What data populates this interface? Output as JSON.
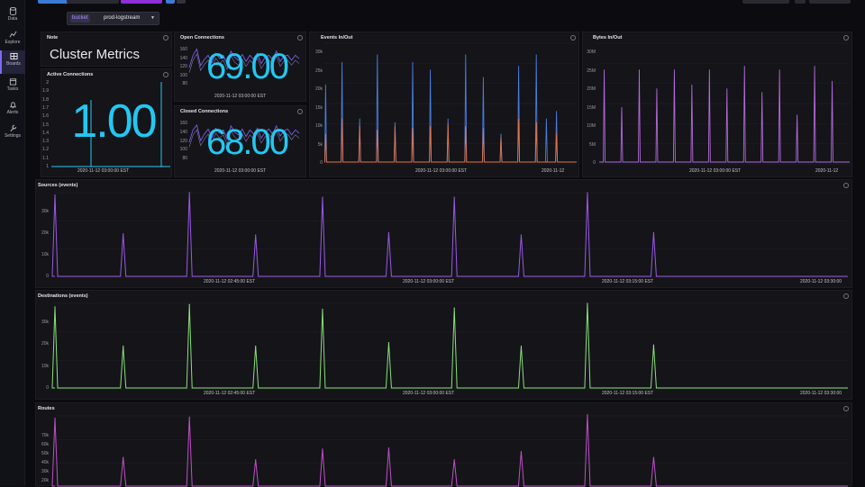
{
  "sidebar": {
    "items": [
      {
        "label": "Data",
        "icon": "database-icon"
      },
      {
        "label": "Explore",
        "icon": "graph-icon"
      },
      {
        "label": "Boards",
        "icon": "dashboard-icon"
      },
      {
        "label": "Tasks",
        "icon": "calendar-icon"
      },
      {
        "label": "Alerts",
        "icon": "bell-icon"
      },
      {
        "label": "Settings",
        "icon": "wrench-icon"
      }
    ]
  },
  "variables": {
    "bucket_label": "bucket",
    "bucket_value": "prod-logstream"
  },
  "colors": {
    "accent": "#22c8f2",
    "purple": "#9b59e6",
    "green": "#8be07a",
    "magenta": "#c04fc8",
    "orange": "#e0734c",
    "blue": "#4d7de0"
  },
  "note": {
    "title": "Note",
    "text": "Cluster Metrics"
  },
  "active_connections": {
    "title": "Active Connections",
    "value": "1.00",
    "yticks": [
      "2",
      "1.9",
      "1.8",
      "1.7",
      "1.6",
      "1.5",
      "1.4",
      "1.3",
      "1.2",
      "1.1",
      "1"
    ],
    "xlabel": "2020-11-12 03:00:00 EST"
  },
  "open_connections": {
    "title": "Open Connections",
    "value": "69.00",
    "yticks": [
      "160",
      "140",
      "120",
      "100",
      "80"
    ],
    "xlabel": "2020-11-12 03:00:00 EST"
  },
  "closed_connections": {
    "title": "Closed Connections",
    "value": "68.00",
    "yticks": [
      "160",
      "140",
      "120",
      "100",
      "80"
    ],
    "xlabel": "2020-11-12 03:00:00 EST"
  },
  "events_inout": {
    "title": "Events In/Out",
    "yticks": [
      "30k",
      "25k",
      "20k",
      "15k",
      "10k",
      "5k",
      "0"
    ],
    "xlabels": [
      "2020-11-12 03:00:00 EST",
      "2020-11-12"
    ]
  },
  "bytes_inout": {
    "title": "Bytes In/Out",
    "yticks": [
      "30M",
      "25M",
      "20M",
      "15M",
      "10M",
      "5M",
      "0"
    ],
    "xlabels": [
      "2020-11-12 03:00:00 EST",
      "2020-11-12"
    ]
  },
  "sources": {
    "title": "Sources (events)",
    "yticks": [
      "30k",
      "20k",
      "10k",
      "0"
    ],
    "xlabels": [
      "2020-11-12 02:45:00 EST",
      "2020-11-12 03:00:00 EST",
      "2020-11-12 03:15:00 EST",
      "2020-11-12 03:30:00"
    ]
  },
  "destinations": {
    "title": "Destinations (events)",
    "yticks": [
      "30k",
      "20k",
      "10k",
      "0"
    ],
    "xlabels": [
      "2020-11-12 02:45:00 EST",
      "2020-11-12 03:00:00 EST",
      "2020-11-12 03:15:00 EST",
      "2020-11-12 03:30:00"
    ]
  },
  "routes": {
    "title": "Routes",
    "yticks": [
      "70k",
      "60k",
      "50k",
      "40k",
      "30k",
      "20k"
    ]
  },
  "chart_data": [
    {
      "type": "line",
      "name": "sources",
      "ylim": [
        0,
        37000
      ],
      "spikes": [
        {
          "t": 0,
          "v": 36000
        },
        {
          "t": 0.103,
          "v": 19000
        },
        {
          "t": 0.203,
          "v": 37000
        },
        {
          "t": 0.303,
          "v": 18500
        },
        {
          "t": 0.404,
          "v": 35000
        },
        {
          "t": 0.504,
          "v": 19500
        },
        {
          "t": 0.603,
          "v": 35000
        },
        {
          "t": 0.704,
          "v": 18500
        },
        {
          "t": 0.804,
          "v": 37000
        },
        {
          "t": 0.904,
          "v": 19500
        }
      ]
    },
    {
      "type": "line",
      "name": "destinations",
      "ylim": [
        0,
        37000
      ],
      "spikes": [
        {
          "t": 0,
          "v": 35500
        },
        {
          "t": 0.103,
          "v": 18500
        },
        {
          "t": 0.203,
          "v": 36500
        },
        {
          "t": 0.303,
          "v": 18500
        },
        {
          "t": 0.404,
          "v": 34500
        },
        {
          "t": 0.504,
          "v": 20000
        },
        {
          "t": 0.603,
          "v": 35000
        },
        {
          "t": 0.704,
          "v": 18500
        },
        {
          "t": 0.804,
          "v": 37000
        },
        {
          "t": 0.904,
          "v": 19000
        }
      ]
    },
    {
      "type": "line",
      "name": "routes",
      "ylim": [
        15000,
        75000
      ],
      "spikes": [
        {
          "t": 0,
          "v": 73000
        },
        {
          "t": 0.103,
          "v": 40000
        },
        {
          "t": 0.203,
          "v": 74000
        },
        {
          "t": 0.303,
          "v": 38000
        },
        {
          "t": 0.404,
          "v": 47000
        },
        {
          "t": 0.504,
          "v": 48000
        },
        {
          "t": 0.603,
          "v": 38000
        },
        {
          "t": 0.704,
          "v": 45000
        },
        {
          "t": 0.804,
          "v": 76000
        },
        {
          "t": 0.904,
          "v": 40000
        }
      ]
    },
    {
      "type": "line",
      "name": "events_inout",
      "ylim": [
        0,
        32000
      ],
      "series": [
        {
          "name": "in",
          "spikes": [
            [
              0.005,
              21000
            ],
            [
              0.07,
              27000
            ],
            [
              0.14,
              12000
            ],
            [
              0.21,
              29000
            ],
            [
              0.28,
              11000
            ],
            [
              0.35,
              27000
            ],
            [
              0.42,
              25000
            ],
            [
              0.49,
              12000
            ],
            [
              0.56,
              29000
            ],
            [
              0.63,
              23000
            ],
            [
              0.7,
              8000
            ],
            [
              0.77,
              26000
            ],
            [
              0.84,
              29000
            ],
            [
              0.88,
              12000
            ],
            [
              0.92,
              14000
            ]
          ]
        },
        {
          "name": "out",
          "spikes": [
            [
              0.005,
              8000
            ],
            [
              0.07,
              12000
            ],
            [
              0.14,
              10000
            ],
            [
              0.21,
              9000
            ],
            [
              0.28,
              10000
            ],
            [
              0.35,
              9500
            ],
            [
              0.42,
              10000
            ],
            [
              0.49,
              10500
            ],
            [
              0.56,
              10000
            ],
            [
              0.63,
              9500
            ],
            [
              0.7,
              7000
            ],
            [
              0.77,
              12000
            ],
            [
              0.84,
              11000
            ],
            [
              0.92,
              8000
            ]
          ]
        }
      ]
    },
    {
      "type": "line",
      "name": "bytes_inout",
      "ylim": [
        0,
        32000000
      ],
      "spikes": [
        [
          0.02,
          25000000
        ],
        [
          0.09,
          15000000
        ],
        [
          0.16,
          25000000
        ],
        [
          0.23,
          20000000
        ],
        [
          0.3,
          25000000
        ],
        [
          0.37,
          21000000
        ],
        [
          0.44,
          25000000
        ],
        [
          0.51,
          20000000
        ],
        [
          0.58,
          26000000
        ],
        [
          0.65,
          19000000
        ],
        [
          0.72,
          25000000
        ],
        [
          0.79,
          13000000
        ],
        [
          0.86,
          26000000
        ],
        [
          0.93,
          22000000
        ]
      ]
    },
    {
      "type": "line",
      "name": "open_connections",
      "ylim": [
        70,
        175
      ],
      "values": [
        120,
        150,
        165,
        125,
        140,
        150,
        132,
        155,
        142,
        150,
        128,
        160,
        145,
        138,
        152,
        135,
        150,
        140,
        155,
        130,
        145,
        150,
        140,
        160,
        135,
        148,
        150,
        138,
        150,
        142
      ]
    },
    {
      "type": "line",
      "name": "closed_connections",
      "ylim": [
        70,
        175
      ],
      "values": [
        118,
        148,
        160,
        122,
        138,
        150,
        130,
        152,
        140,
        148,
        125,
        158,
        142,
        136,
        150,
        132,
        148,
        138,
        152,
        128,
        143,
        150,
        138,
        158,
        133,
        146,
        150,
        136,
        148,
        140
      ]
    }
  ]
}
